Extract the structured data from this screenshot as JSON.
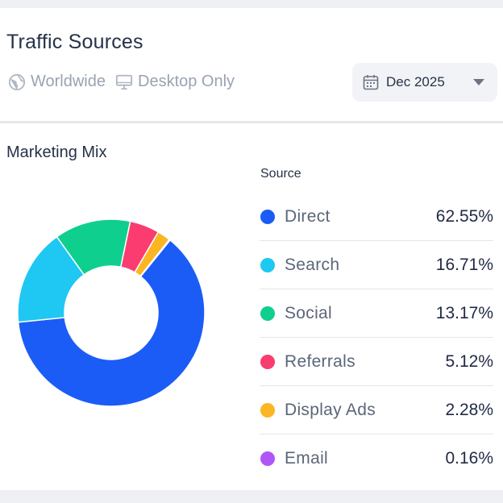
{
  "header": {
    "title": "Traffic Sources",
    "region": "Worldwide",
    "device": "Desktop Only",
    "date": "Dec 2025"
  },
  "section": {
    "title": "Marketing Mix",
    "legend_header": "Source"
  },
  "chart_data": {
    "type": "pie",
    "variant": "donut",
    "categories": [
      "Direct",
      "Search",
      "Social",
      "Referrals",
      "Display Ads",
      "Email"
    ],
    "values": [
      62.55,
      16.71,
      13.17,
      5.12,
      2.28,
      0.16
    ],
    "value_labels": [
      "62.55%",
      "16.71%",
      "13.17%",
      "5.12%",
      "2.28%",
      "0.16%"
    ],
    "colors": [
      "#1b5cf7",
      "#1ec8f2",
      "#0fcf8e",
      "#fb3c70",
      "#fbb624",
      "#b056f7"
    ]
  }
}
